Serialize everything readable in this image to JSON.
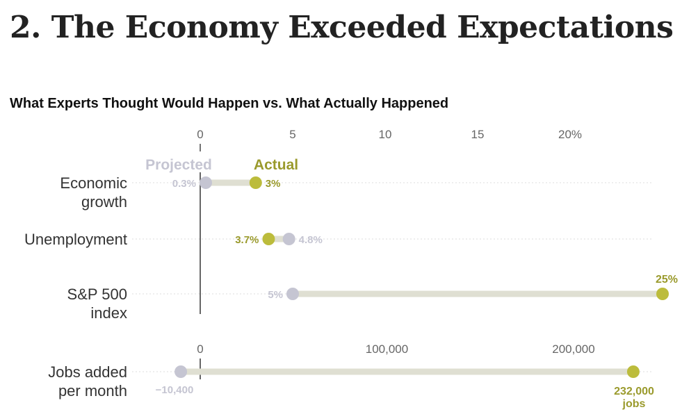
{
  "header": {
    "headline": "2. The Economy Exceeded Expectations",
    "subtitle": "What Experts Thought Would Happen vs. What Actually Happened"
  },
  "colors": {
    "projected": "#c5c5d2",
    "actual": "#bcbc3c",
    "actual_text": "#9a9a2c",
    "bar": "#dfdfd2",
    "label": "#333333",
    "tick": "#666666",
    "grid": "#dddddd"
  },
  "chart_data": [
    {
      "type": "dumbbell",
      "title": "What Experts Thought Would Happen vs. What Actually Happened",
      "unit": "%",
      "xlim": [
        0,
        24
      ],
      "ticks": [
        {
          "value": 0,
          "label": "0"
        },
        {
          "value": 5,
          "label": "5"
        },
        {
          "value": 10,
          "label": "10"
        },
        {
          "value": 15,
          "label": "15"
        },
        {
          "value": 20,
          "label": "20%"
        }
      ],
      "legend": {
        "projected": "Projected",
        "actual": "Actual"
      },
      "rows": [
        {
          "category_lines": [
            "Economic",
            "growth"
          ],
          "projected": 0.3,
          "actual": 3,
          "projected_label": "0.3%",
          "actual_label": "3%"
        },
        {
          "category_lines": [
            "Unemployment"
          ],
          "projected": 4.8,
          "actual": 3.7,
          "projected_label": "4.8%",
          "actual_label": "3.7%"
        },
        {
          "category_lines": [
            "S&P 500",
            "index"
          ],
          "projected": 5,
          "actual": 25,
          "projected_label": "5%",
          "actual_label": "25%"
        }
      ]
    },
    {
      "type": "dumbbell",
      "xlim": [
        -15000,
        245000
      ],
      "ticks": [
        {
          "value": 0,
          "label": "0"
        },
        {
          "value": 100000,
          "label": "100,000"
        },
        {
          "value": 200000,
          "label": "200,000"
        }
      ],
      "rows": [
        {
          "category_lines": [
            "Jobs added",
            "per month"
          ],
          "projected": -10400,
          "actual": 232000,
          "projected_label": "−10,400",
          "actual_label_lines": [
            "232,000",
            "jobs"
          ]
        }
      ]
    }
  ]
}
